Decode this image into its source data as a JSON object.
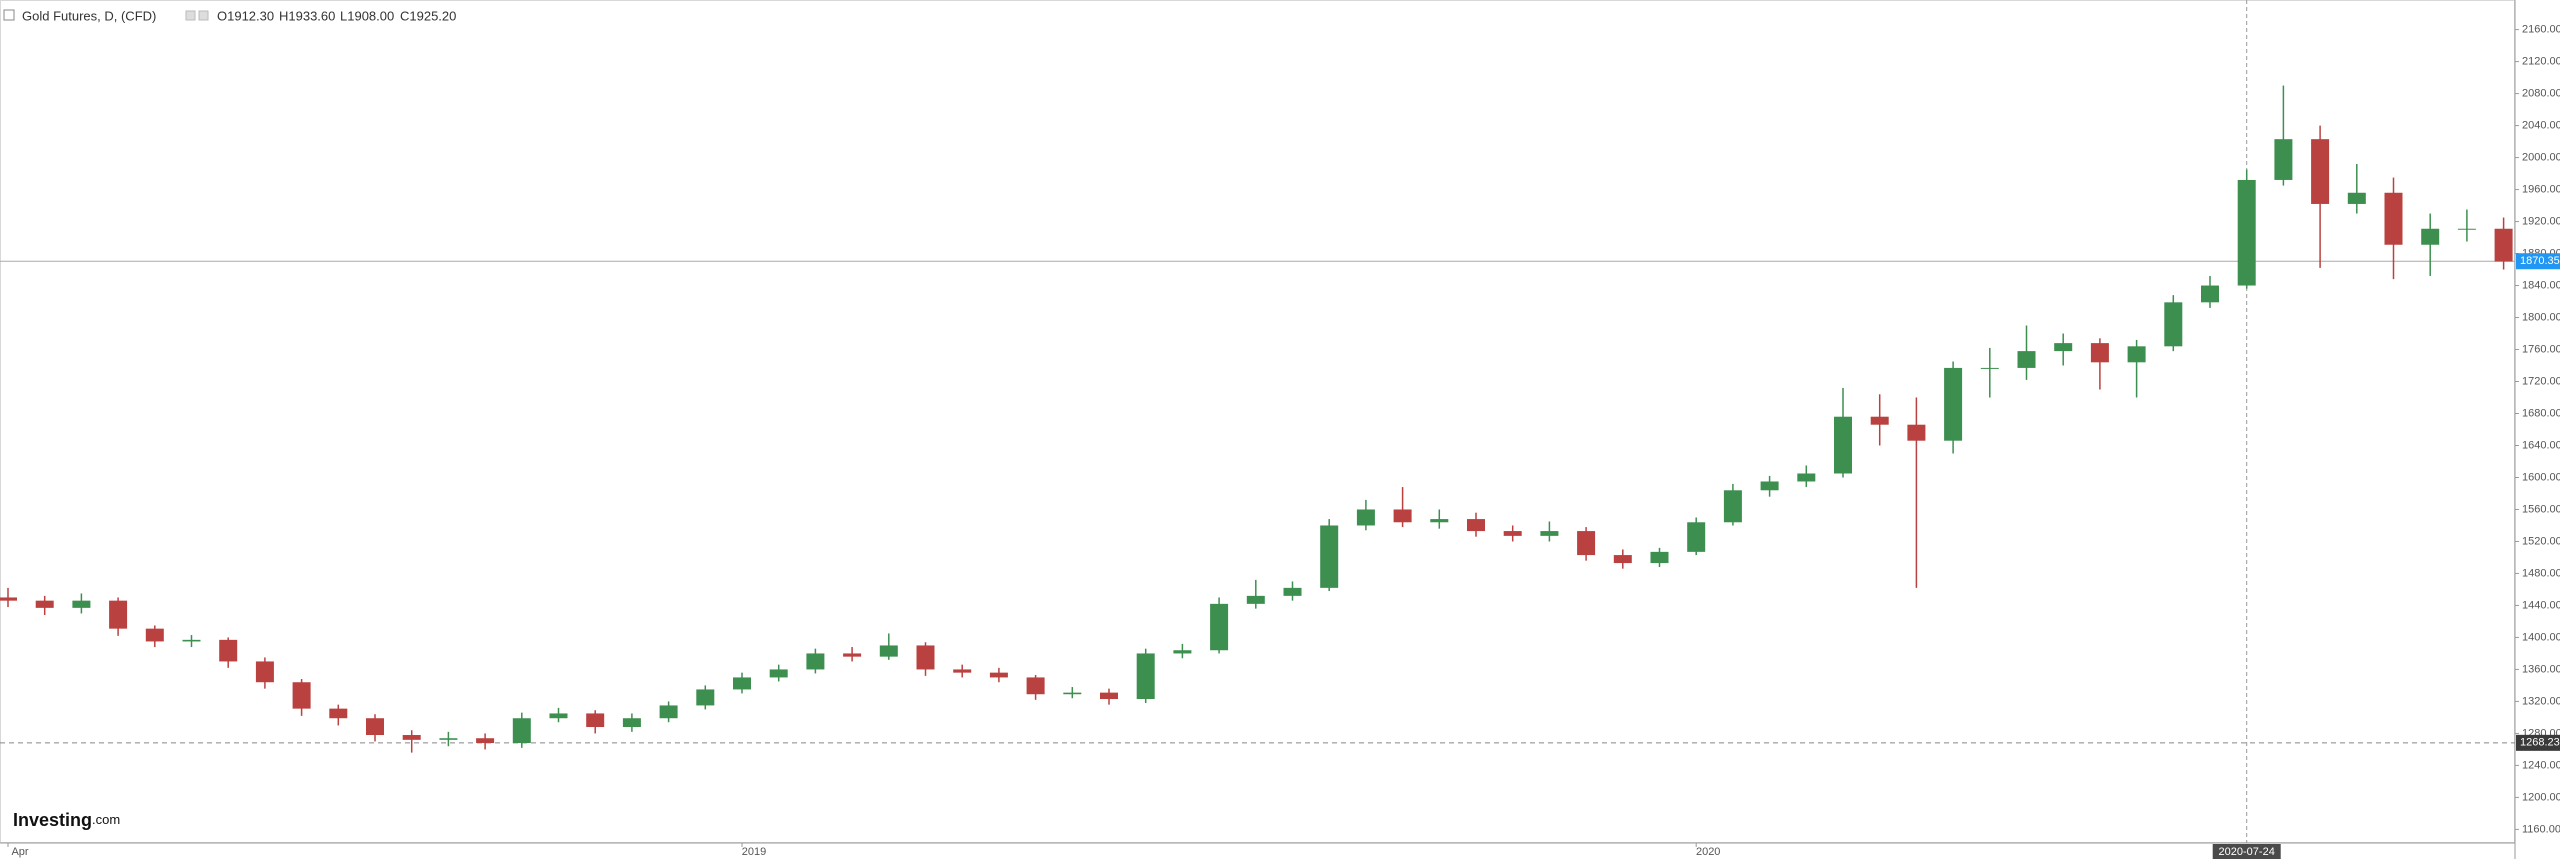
{
  "chart_data": {
    "type": "candlestick",
    "header": {
      "symbol": "Gold Futures, D, (CFD)",
      "ohlc": [
        "O1912.30",
        "H1933.60",
        "L1908.00",
        "C1925.20"
      ]
    },
    "logo": {
      "main": "Investing",
      "suffix": ".com"
    },
    "categories": [
      "Apr",
      null,
      null,
      null,
      null,
      null,
      null,
      null,
      null,
      null,
      null,
      null,
      null,
      null,
      null,
      null,
      null,
      null,
      null,
      null,
      "2019",
      null,
      null,
      null,
      null,
      null,
      null,
      null,
      null,
      null,
      null,
      null,
      null,
      null,
      null,
      null,
      null,
      null,
      null,
      null,
      null,
      null,
      null,
      null,
      null,
      null,
      "2020",
      null,
      null,
      null,
      null,
      null,
      null,
      null,
      null,
      null,
      null,
      null,
      null,
      null,
      null,
      null,
      null,
      null,
      null,
      null,
      null,
      null,
      null
    ],
    "crosshair_label": "2020-07-24",
    "open": [
      1450,
      1446,
      1437,
      1446,
      1411,
      1395,
      1397,
      1370,
      1344,
      1311,
      1299,
      1278,
      1272,
      1274,
      1268,
      1299,
      1305,
      1288,
      1299,
      1315,
      1335,
      1350,
      1360,
      1380,
      1376,
      1390,
      1360,
      1356,
      1350,
      1329,
      1331,
      1323,
      1380,
      1384,
      1442,
      1452,
      1462,
      1540,
      1560,
      1544,
      1548,
      1533,
      1527,
      1533,
      1503,
      1493,
      1507,
      1544,
      1584,
      1595,
      1605,
      1676,
      1666,
      1646,
      1737,
      1737,
      1758,
      1768,
      1744,
      1764,
      1819,
      1840,
      1972,
      2023,
      1942,
      1956,
      1891,
      1911,
      1911
    ],
    "high": [
      1462,
      1452,
      1455,
      1450,
      1415,
      1403,
      1400,
      1375,
      1348,
      1316,
      1304,
      1284,
      1282,
      1280,
      1306,
      1312,
      1309,
      1305,
      1320,
      1340,
      1356,
      1366,
      1386,
      1388,
      1405,
      1394,
      1366,
      1362,
      1353,
      1338,
      1336,
      1386,
      1392,
      1450,
      1472,
      1470,
      1548,
      1572,
      1588,
      1560,
      1556,
      1540,
      1545,
      1538,
      1510,
      1512,
      1550,
      1592,
      1602,
      1615,
      1712,
      1704,
      1700,
      1745,
      1762,
      1790,
      1780,
      1774,
      1772,
      1828,
      1852,
      1985,
      2090,
      2040,
      1992,
      1975,
      1930,
      1935,
      1925
    ],
    "low": [
      1438,
      1428,
      1430,
      1402,
      1388,
      1388,
      1362,
      1336,
      1302,
      1290,
      1270,
      1256,
      1264,
      1260,
      1262,
      1294,
      1280,
      1282,
      1294,
      1310,
      1330,
      1345,
      1355,
      1370,
      1372,
      1352,
      1350,
      1344,
      1322,
      1324,
      1316,
      1318,
      1374,
      1380,
      1436,
      1446,
      1458,
      1534,
      1538,
      1536,
      1526,
      1520,
      1520,
      1496,
      1486,
      1488,
      1503,
      1540,
      1576,
      1588,
      1600,
      1640,
      1462,
      1630,
      1700,
      1722,
      1740,
      1710,
      1700,
      1758,
      1812,
      1836,
      1965,
      1862,
      1930,
      1848,
      1852,
      1895,
      1860
    ],
    "close": [
      1446,
      1437,
      1446,
      1411,
      1395,
      1397,
      1370,
      1344,
      1311,
      1299,
      1278,
      1272,
      1274,
      1268,
      1299,
      1305,
      1288,
      1299,
      1315,
      1335,
      1350,
      1360,
      1380,
      1376,
      1390,
      1360,
      1356,
      1350,
      1329,
      1331,
      1323,
      1380,
      1384,
      1442,
      1452,
      1462,
      1540,
      1560,
      1544,
      1548,
      1533,
      1527,
      1533,
      1503,
      1493,
      1507,
      1544,
      1584,
      1595,
      1605,
      1676,
      1666,
      1646,
      1737,
      1737,
      1758,
      1768,
      1744,
      1764,
      1819,
      1840,
      1972,
      2023,
      1942,
      1956,
      1891,
      1911,
      1911,
      1870
    ],
    "up_color": "#3d8f50",
    "down_color": "#b9413f",
    "ylim": [
      1143,
      2197
    ],
    "yticks": [
      {
        "value": 1160,
        "label": "1160.00"
      },
      {
        "value": 1200,
        "label": "1200.00"
      },
      {
        "value": 1240,
        "label": "1240.00"
      },
      {
        "value": 1280,
        "label": "1280.00"
      },
      {
        "value": 1320,
        "label": "1320.00"
      },
      {
        "value": 1360,
        "label": "1360.00"
      },
      {
        "value": 1400,
        "label": "1400.00"
      },
      {
        "value": 1440,
        "label": "1440.00"
      },
      {
        "value": 1480,
        "label": "1480.00"
      },
      {
        "value": 1520,
        "label": "1520.00"
      },
      {
        "value": 1560,
        "label": "1560.00"
      },
      {
        "value": 1600,
        "label": "1600.00"
      },
      {
        "value": 1640,
        "label": "1640.00"
      },
      {
        "value": 1680,
        "label": "1680.00"
      },
      {
        "value": 1720,
        "label": "1720.00"
      },
      {
        "value": 1760,
        "label": "1760.00"
      },
      {
        "value": 1800,
        "label": "1800.00"
      },
      {
        "value": 1840,
        "label": "1840.00"
      },
      {
        "value": 1880,
        "label": "1880.00"
      },
      {
        "value": 1920,
        "label": "1920.00"
      },
      {
        "value": 1960,
        "label": "1960.00"
      },
      {
        "value": 2000,
        "label": "2000.00"
      },
      {
        "value": 2040,
        "label": "2040.00"
      },
      {
        "value": 2080,
        "label": "2080.00"
      },
      {
        "value": 2120,
        "label": "2120.00"
      },
      {
        "value": 2160,
        "label": "2160.00"
      }
    ],
    "price_lines": [
      {
        "value": 1870.35,
        "color": "#2196f3",
        "style": "solid"
      },
      {
        "value": 1268.23,
        "color": "#3a3a3a",
        "style": "dashed"
      }
    ]
  }
}
